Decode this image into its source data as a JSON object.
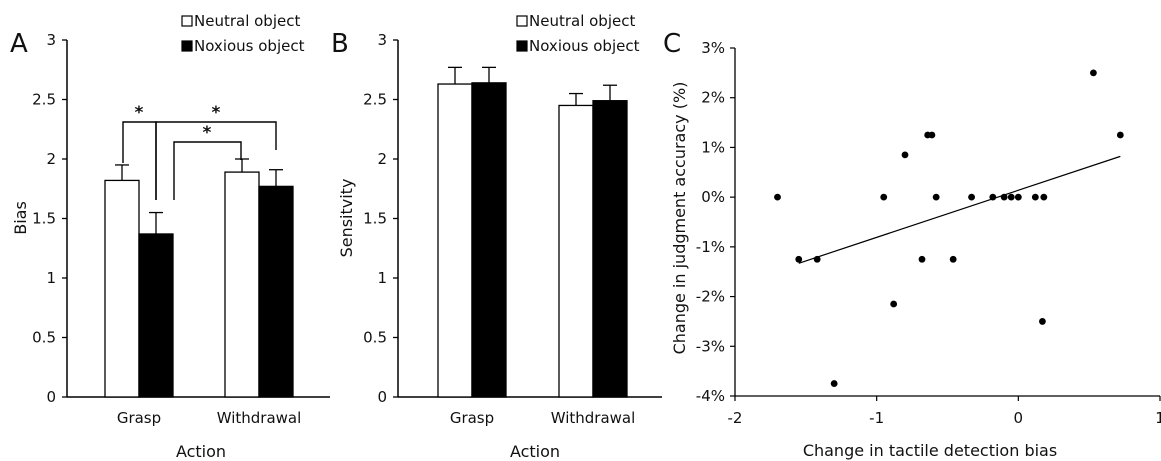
{
  "chart_data": [
    {
      "type": "bar",
      "panel_label": "A",
      "categories": [
        "Grasp",
        "Withdrawal"
      ],
      "series": [
        {
          "name": "Neutral object",
          "values": [
            1.82,
            1.89
          ],
          "errors": [
            0.13,
            0.11
          ],
          "color": "#ffffff"
        },
        {
          "name": "Noxious object",
          "values": [
            1.37,
            1.77
          ],
          "errors": [
            0.18,
            0.14
          ],
          "color": "#000000"
        }
      ],
      "xlabel": "Action",
      "ylabel": "Bias",
      "ylim": [
        0,
        3
      ],
      "yticks": [
        "0",
        "0.5",
        "1",
        "1.5",
        "2",
        "2.5",
        "3"
      ],
      "significance": [
        "*",
        "*",
        "*"
      ],
      "legend": "top-right",
      "grid": false
    },
    {
      "type": "bar",
      "panel_label": "B",
      "categories": [
        "Grasp",
        "Withdrawal"
      ],
      "series": [
        {
          "name": "Neutral object",
          "values": [
            2.63,
            2.45
          ],
          "errors": [
            0.14,
            0.1
          ],
          "color": "#ffffff"
        },
        {
          "name": "Noxious object",
          "values": [
            2.64,
            2.49
          ],
          "errors": [
            0.13,
            0.13
          ],
          "color": "#000000"
        }
      ],
      "xlabel": "Action",
      "ylabel": "Sensitvity",
      "ylim": [
        0,
        3
      ],
      "yticks": [
        "0",
        "0.5",
        "1",
        "1.5",
        "2",
        "2.5",
        "3"
      ],
      "legend": "top-right",
      "grid": false
    },
    {
      "type": "scatter",
      "panel_label": "C",
      "points": [
        {
          "x": -1.7,
          "y": 0
        },
        {
          "x": -1.55,
          "y": -1.25
        },
        {
          "x": -1.42,
          "y": -1.25
        },
        {
          "x": -1.3,
          "y": -3.75
        },
        {
          "x": -0.95,
          "y": 0
        },
        {
          "x": -0.88,
          "y": -2.15
        },
        {
          "x": -0.8,
          "y": 0.85
        },
        {
          "x": -0.68,
          "y": -1.25
        },
        {
          "x": -0.64,
          "y": 1.25
        },
        {
          "x": -0.61,
          "y": 1.25
        },
        {
          "x": -0.58,
          "y": 0
        },
        {
          "x": -0.46,
          "y": -1.25
        },
        {
          "x": -0.33,
          "y": 0
        },
        {
          "x": -0.18,
          "y": 0
        },
        {
          "x": -0.1,
          "y": 0
        },
        {
          "x": -0.05,
          "y": 0
        },
        {
          "x": 0,
          "y": 0
        },
        {
          "x": 0.12,
          "y": 0
        },
        {
          "x": 0.17,
          "y": -2.5
        },
        {
          "x": 0.18,
          "y": 0
        },
        {
          "x": 0.53,
          "y": 2.5
        },
        {
          "x": 0.72,
          "y": 1.25
        }
      ],
      "trendline": {
        "x": [
          -1.55,
          0.72
        ],
        "y": [
          -1.33,
          0.82
        ]
      },
      "xlabel": "Change in tactile detection bias",
      "ylabel": "Change in judgment accuracy (%)",
      "xlim": [
        -2,
        1
      ],
      "ylim": [
        -4,
        3
      ],
      "xticks": [
        "-2",
        "-1",
        "0",
        "1"
      ],
      "yticks": [
        "-4%",
        "-3%",
        "-2%",
        "-1%",
        "0%",
        "1%",
        "2%",
        "3%"
      ],
      "grid": false
    }
  ]
}
